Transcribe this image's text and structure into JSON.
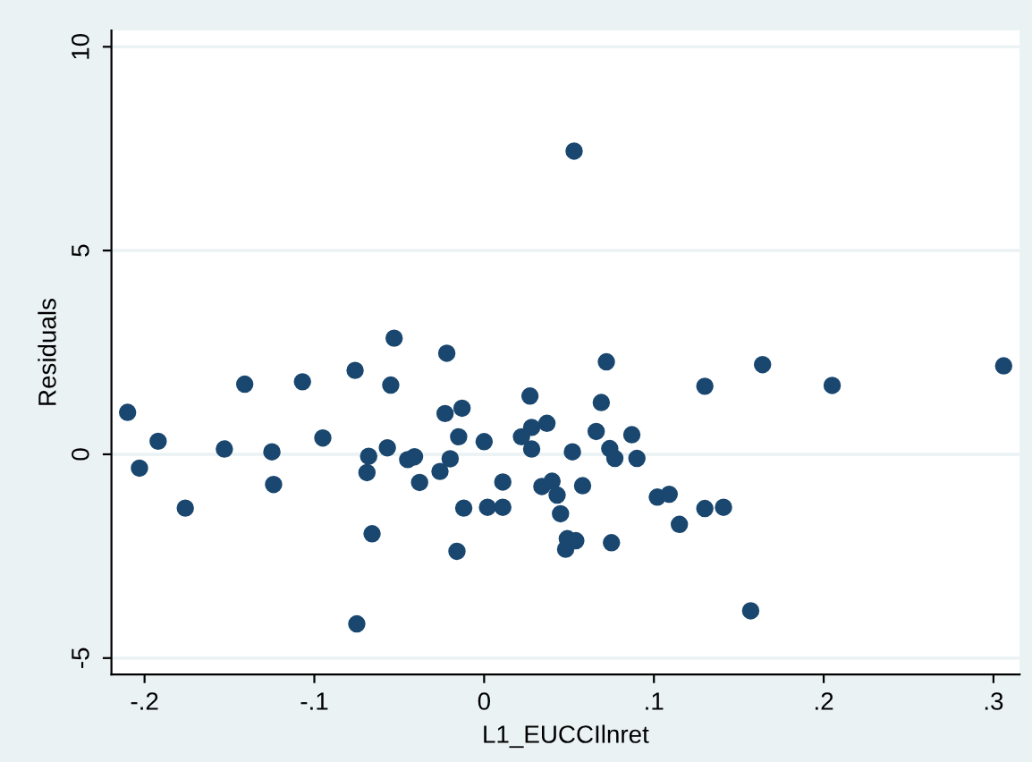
{
  "chart_data": {
    "type": "scatter",
    "xlabel": "L1_EUCCIlnret",
    "ylabel": "Residuals",
    "x": [
      -0.21,
      -0.203,
      -0.192,
      -0.176,
      -0.153,
      -0.141,
      -0.125,
      -0.124,
      -0.107,
      -0.095,
      -0.076,
      -0.075,
      -0.069,
      -0.068,
      -0.066,
      -0.057,
      -0.055,
      -0.053,
      -0.045,
      -0.041,
      -0.038,
      -0.026,
      -0.023,
      -0.022,
      -0.02,
      -0.015,
      -0.016,
      -0.013,
      -0.012,
      0.0,
      0.002,
      0.011,
      0.011,
      0.022,
      0.027,
      0.028,
      0.028,
      0.034,
      0.037,
      0.04,
      0.043,
      0.045,
      0.048,
      0.049,
      0.052,
      0.053,
      0.054,
      0.058,
      0.066,
      0.069,
      0.072,
      0.074,
      0.075,
      0.077,
      0.087,
      0.09,
      0.102,
      0.109,
      0.115,
      0.13,
      0.13,
      0.141,
      0.157,
      0.164,
      0.205,
      0.306
    ],
    "series": [
      {
        "color": "#1a476f",
        "values": [
          1.03,
          -0.34,
          0.32,
          -1.32,
          0.13,
          1.72,
          0.06,
          -0.74,
          1.78,
          0.4,
          2.06,
          -4.16,
          -0.45,
          -0.05,
          -1.95,
          0.16,
          1.7,
          2.85,
          -0.13,
          -0.06,
          -0.69,
          -0.42,
          1.0,
          2.48,
          -0.11,
          0.43,
          -2.38,
          1.13,
          -1.32,
          0.31,
          -1.3,
          -0.68,
          -1.3,
          0.43,
          1.43,
          0.66,
          0.13,
          -0.79,
          0.76,
          -0.66,
          -1.0,
          -1.46,
          -2.33,
          -2.07,
          0.06,
          7.44,
          -2.12,
          -0.77,
          0.56,
          1.27,
          2.27,
          0.14,
          -2.17,
          -0.1,
          0.48,
          -0.1,
          -1.05,
          -0.98,
          -1.72,
          1.67,
          -1.33,
          -1.3,
          -3.84,
          2.2,
          1.69,
          2.17
        ]
      }
    ],
    "xlim": [
      -0.2195,
      0.3154
    ],
    "ylim": [
      -5.4,
      10.4
    ],
    "xticks": [
      {
        "value": -0.2,
        "label": "-.2"
      },
      {
        "value": -0.1,
        "label": "-.1"
      },
      0,
      {
        "value": 0.1,
        "label": ".1"
      },
      {
        "value": 0.2,
        "label": ".2"
      },
      {
        "value": 0.3,
        "label": ".3"
      }
    ],
    "yticks": [
      -5,
      0,
      5,
      10
    ],
    "grid": "y",
    "marker": "circle"
  }
}
